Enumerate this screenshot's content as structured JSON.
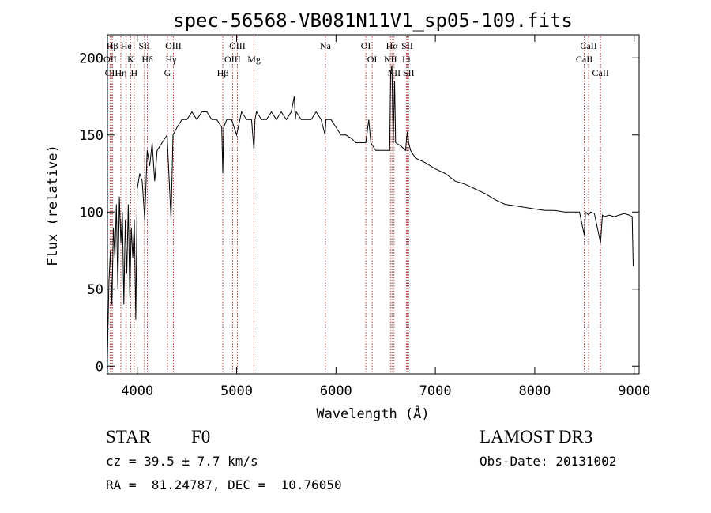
{
  "chart_data": {
    "type": "line",
    "title": "spec-56568-VB081N11V1_sp05-109.fits",
    "xlabel": "Wavelength (Å)",
    "ylabel": "Flux (relative)",
    "xlim": [
      3700,
      9050
    ],
    "ylim": [
      -5,
      215
    ],
    "x_ticks": [
      4000,
      5000,
      6000,
      7000,
      8000,
      9000
    ],
    "y_ticks": [
      0,
      50,
      100,
      150,
      200
    ],
    "grid": false,
    "series": [
      {
        "name": "flux",
        "color": "#000000",
        "x": [
          3700,
          3715,
          3730,
          3745,
          3760,
          3775,
          3790,
          3805,
          3820,
          3835,
          3850,
          3865,
          3880,
          3895,
          3910,
          3925,
          3940,
          3955,
          3970,
          3985,
          4000,
          4025,
          4050,
          4075,
          4100,
          4125,
          4150,
          4175,
          4200,
          4250,
          4300,
          4340,
          4360,
          4400,
          4450,
          4500,
          4550,
          4600,
          4650,
          4700,
          4750,
          4800,
          4850,
          4861,
          4870,
          4900,
          4950,
          5000,
          5050,
          5100,
          5150,
          5175,
          5185,
          5200,
          5250,
          5300,
          5350,
          5400,
          5450,
          5500,
          5550,
          5580,
          5590,
          5600,
          5650,
          5700,
          5750,
          5800,
          5850,
          5890,
          5900,
          5950,
          6000,
          6050,
          6100,
          6150,
          6200,
          6250,
          6300,
          6330,
          6350,
          6400,
          6450,
          6500,
          6540,
          6550,
          6563,
          6575,
          6590,
          6600,
          6650,
          6700,
          6717,
          6731,
          6750,
          6800,
          6900,
          7000,
          7100,
          7200,
          7300,
          7400,
          7500,
          7600,
          7700,
          7800,
          7900,
          8000,
          8100,
          8200,
          8300,
          8400,
          8450,
          8498,
          8510,
          8542,
          8560,
          8600,
          8662,
          8680,
          8700,
          8750,
          8800,
          8850,
          8900,
          8950,
          8980,
          8990
        ],
        "y": [
          5,
          55,
          75,
          40,
          90,
          70,
          105,
          50,
          110,
          80,
          100,
          40,
          95,
          60,
          105,
          45,
          90,
          70,
          95,
          30,
          115,
          125,
          120,
          95,
          140,
          130,
          145,
          120,
          140,
          145,
          150,
          95,
          150,
          155,
          160,
          160,
          165,
          160,
          165,
          165,
          160,
          160,
          155,
          125,
          155,
          160,
          160,
          150,
          165,
          160,
          160,
          140,
          160,
          165,
          160,
          160,
          165,
          160,
          165,
          160,
          165,
          175,
          160,
          165,
          160,
          160,
          160,
          165,
          160,
          150,
          160,
          160,
          155,
          150,
          150,
          148,
          145,
          145,
          145,
          160,
          145,
          140,
          140,
          140,
          140,
          190,
          195,
          145,
          185,
          145,
          143,
          140,
          152,
          145,
          140,
          135,
          132,
          128,
          125,
          120,
          118,
          115,
          112,
          108,
          105,
          104,
          103,
          102,
          101,
          101,
          100,
          100,
          100,
          85,
          100,
          98,
          100,
          99,
          80,
          98,
          97,
          98,
          97,
          98,
          99,
          98,
          97,
          65
        ]
      }
    ],
    "line_markers": [
      {
        "label": "Hβ",
        "x": 3750
      },
      {
        "label": "OII",
        "x": 3727
      },
      {
        "label": "OII",
        "x": 3740
      },
      {
        "label": "Hη",
        "x": 3835
      },
      {
        "label": "He",
        "x": 3889
      },
      {
        "label": "K",
        "x": 3934
      },
      {
        "label": "SII",
        "x": 4072
      },
      {
        "label": "H",
        "x": 3969
      },
      {
        "label": "Hδ",
        "x": 4102
      },
      {
        "label": "OIII",
        "x": 4363
      },
      {
        "label": "Hγ",
        "x": 4340
      },
      {
        "label": "G",
        "x": 4304
      },
      {
        "label": "OIII",
        "x": 5007
      },
      {
        "label": "OIII",
        "x": 4959
      },
      {
        "label": "Hβ",
        "x": 4861
      },
      {
        "label": "Mg",
        "x": 5175
      },
      {
        "label": "Na",
        "x": 5893
      },
      {
        "label": "OI",
        "x": 6300
      },
      {
        "label": "OI",
        "x": 6364
      },
      {
        "label": "Hα",
        "x": 6563
      },
      {
        "label": "NII",
        "x": 6548
      },
      {
        "label": "NII",
        "x": 6584
      },
      {
        "label": "SII",
        "x": 6717
      },
      {
        "label": "Li",
        "x": 6708
      },
      {
        "label": "SII",
        "x": 6731
      },
      {
        "label": "CaII",
        "x": 8542
      },
      {
        "label": "CaII",
        "x": 8498
      },
      {
        "label": "CaII",
        "x": 8662
      }
    ]
  },
  "info": {
    "class_label": "STAR",
    "subclass": "F0",
    "survey": "LAMOST DR3",
    "cz": "cz = 39.5 ± 7.7 km/s",
    "obs_date": "Obs-Date: 20131002",
    "coords": "RA =  81.24787, DEC =  10.76050"
  },
  "colors": {
    "axis": "#000000",
    "marker_line": "#b22222",
    "spectrum": "#000000"
  }
}
